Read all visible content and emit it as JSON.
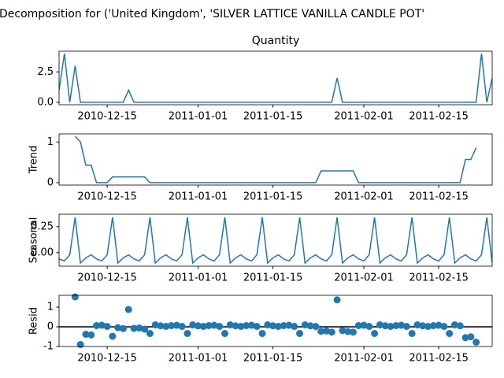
{
  "chart_data": [
    {
      "type": "line",
      "title": "Decomposition for ('United Kingdom', 'SILVER LATTICE VANILLA CANDLE POT'",
      "subtitle": "Quantity",
      "color": "#1f77b4",
      "x": [
        "2010-12-06",
        "2010-12-07",
        "2010-12-08",
        "2010-12-09",
        "2010-12-10",
        "2010-12-11",
        "2010-12-12",
        "2010-12-13",
        "2010-12-14",
        "2010-12-15",
        "2010-12-16",
        "2010-12-17",
        "2010-12-18",
        "2010-12-19",
        "2010-12-20",
        "2010-12-21",
        "2010-12-22",
        "2010-12-23",
        "2010-12-24",
        "2010-12-25",
        "2010-12-26",
        "2010-12-27",
        "2010-12-28",
        "2010-12-29",
        "2010-12-30",
        "2010-12-31",
        "2011-01-01",
        "2011-01-02",
        "2011-01-03",
        "2011-01-04",
        "2011-01-05",
        "2011-01-06",
        "2011-01-07",
        "2011-01-08",
        "2011-01-09",
        "2011-01-10",
        "2011-01-11",
        "2011-01-12",
        "2011-01-13",
        "2011-01-14",
        "2011-01-15",
        "2011-01-16",
        "2011-01-17",
        "2011-01-18",
        "2011-01-19",
        "2011-01-20",
        "2011-01-21",
        "2011-01-22",
        "2011-01-23",
        "2011-01-24",
        "2011-01-25",
        "2011-01-26",
        "2011-01-27",
        "2011-01-28",
        "2011-01-29",
        "2011-01-30",
        "2011-01-31",
        "2011-02-01",
        "2011-02-02",
        "2011-02-03",
        "2011-02-04",
        "2011-02-05",
        "2011-02-06",
        "2011-02-07",
        "2011-02-08",
        "2011-02-09",
        "2011-02-10",
        "2011-02-11",
        "2011-02-12",
        "2011-02-13",
        "2011-02-14",
        "2011-02-15",
        "2011-02-16",
        "2011-02-17",
        "2011-02-18",
        "2011-02-19",
        "2011-02-20",
        "2011-02-21",
        "2011-02-22",
        "2011-02-23",
        "2011-02-24",
        "2011-02-25"
      ],
      "values": [
        1,
        4,
        0,
        3,
        0,
        0,
        0,
        0,
        0,
        0,
        0,
        0,
        0,
        1,
        0,
        0,
        0,
        0,
        0,
        0,
        0,
        0,
        0,
        0,
        0,
        0,
        0,
        0,
        0,
        0,
        0,
        0,
        0,
        0,
        0,
        0,
        0,
        0,
        0,
        0,
        0,
        0,
        0,
        0,
        0,
        0,
        0,
        0,
        0,
        0,
        0,
        0,
        2,
        0,
        0,
        0,
        0,
        0,
        0,
        0,
        0,
        0,
        0,
        0,
        0,
        0,
        0,
        0,
        0,
        0,
        0,
        0,
        0,
        0,
        0,
        0,
        0,
        0,
        0,
        4,
        0,
        2
      ],
      "xlim": [
        "2010-12-06",
        "2011-02-25"
      ],
      "xticks": [
        "2010-12-15",
        "2011-01-01",
        "2011-01-15",
        "2011-02-01",
        "2011-02-15"
      ],
      "ylim": [
        -0.2,
        4.2
      ],
      "yticks": [
        {
          "value": 0,
          "label": "0.0"
        },
        2.5
      ]
    },
    {
      "type": "line",
      "ylabel": "Trend",
      "color": "#1f77b4",
      "x": [
        "2010-12-06",
        "2010-12-07",
        "2010-12-08",
        "2010-12-09",
        "2010-12-10",
        "2010-12-11",
        "2010-12-12",
        "2010-12-13",
        "2010-12-14",
        "2010-12-15",
        "2010-12-16",
        "2010-12-17",
        "2010-12-18",
        "2010-12-19",
        "2010-12-20",
        "2010-12-21",
        "2010-12-22",
        "2010-12-23",
        "2010-12-24",
        "2010-12-25",
        "2010-12-26",
        "2010-12-27",
        "2010-12-28",
        "2010-12-29",
        "2010-12-30",
        "2010-12-31",
        "2011-01-01",
        "2011-01-02",
        "2011-01-03",
        "2011-01-04",
        "2011-01-05",
        "2011-01-06",
        "2011-01-07",
        "2011-01-08",
        "2011-01-09",
        "2011-01-10",
        "2011-01-11",
        "2011-01-12",
        "2011-01-13",
        "2011-01-14",
        "2011-01-15",
        "2011-01-16",
        "2011-01-17",
        "2011-01-18",
        "2011-01-19",
        "2011-01-20",
        "2011-01-21",
        "2011-01-22",
        "2011-01-23",
        "2011-01-24",
        "2011-01-25",
        "2011-01-26",
        "2011-01-27",
        "2011-01-28",
        "2011-01-29",
        "2011-01-30",
        "2011-01-31",
        "2011-02-01",
        "2011-02-02",
        "2011-02-03",
        "2011-02-04",
        "2011-02-05",
        "2011-02-06",
        "2011-02-07",
        "2011-02-08",
        "2011-02-09",
        "2011-02-10",
        "2011-02-11",
        "2011-02-12",
        "2011-02-13",
        "2011-02-14",
        "2011-02-15",
        "2011-02-16",
        "2011-02-17",
        "2011-02-18",
        "2011-02-19",
        "2011-02-20",
        "2011-02-21",
        "2011-02-22",
        "2011-02-23",
        "2011-02-24",
        "2011-02-25"
      ],
      "values": [
        null,
        null,
        null,
        1.14,
        1,
        0.43,
        0.43,
        0,
        0,
        0,
        0.14,
        0.14,
        0.14,
        0.14,
        0.14,
        0.14,
        0.14,
        0,
        0,
        0,
        0,
        0,
        0,
        0,
        0,
        0,
        0,
        0,
        0,
        0,
        0,
        0,
        0,
        0,
        0,
        0,
        0,
        0,
        0,
        0,
        0,
        0,
        0,
        0,
        0,
        0,
        0,
        0,
        0,
        0.29,
        0.29,
        0.29,
        0.29,
        0.29,
        0.29,
        0.29,
        0,
        0,
        0,
        0,
        0,
        0,
        0,
        0,
        0,
        0,
        0,
        0,
        0,
        0,
        0,
        0,
        0,
        0,
        0,
        0,
        0.57,
        0.57,
        0.86,
        null,
        null,
        null
      ],
      "xlim": [
        "2010-12-06",
        "2011-02-25"
      ],
      "xticks": [
        "2010-12-15",
        "2011-01-01",
        "2011-01-15",
        "2011-02-01",
        "2011-02-15"
      ],
      "ylim": [
        -0.06,
        1.2
      ],
      "yticks": [
        0,
        1
      ]
    },
    {
      "type": "line",
      "ylabel": "Seasonal",
      "color": "#1f77b4",
      "x": [
        "2010-12-06",
        "2010-12-07",
        "2010-12-08",
        "2010-12-09",
        "2010-12-10",
        "2010-12-11",
        "2010-12-12",
        "2010-12-13",
        "2010-12-14",
        "2010-12-15",
        "2010-12-16",
        "2010-12-17",
        "2010-12-18",
        "2010-12-19",
        "2010-12-20",
        "2010-12-21",
        "2010-12-22",
        "2010-12-23",
        "2010-12-24",
        "2010-12-25",
        "2010-12-26",
        "2010-12-27",
        "2010-12-28",
        "2010-12-29",
        "2010-12-30",
        "2010-12-31",
        "2011-01-01",
        "2011-01-02",
        "2011-01-03",
        "2011-01-04",
        "2011-01-05",
        "2011-01-06",
        "2011-01-07",
        "2011-01-08",
        "2011-01-09",
        "2011-01-10",
        "2011-01-11",
        "2011-01-12",
        "2011-01-13",
        "2011-01-14",
        "2011-01-15",
        "2011-01-16",
        "2011-01-17",
        "2011-01-18",
        "2011-01-19",
        "2011-01-20",
        "2011-01-21",
        "2011-01-22",
        "2011-01-23",
        "2011-01-24",
        "2011-01-25",
        "2011-01-26",
        "2011-01-27",
        "2011-01-28",
        "2011-01-29",
        "2011-01-30",
        "2011-01-31",
        "2011-02-01",
        "2011-02-02",
        "2011-02-03",
        "2011-02-04",
        "2011-02-05",
        "2011-02-06",
        "2011-02-07",
        "2011-02-08",
        "2011-02-09",
        "2011-02-10",
        "2011-02-11",
        "2011-02-12",
        "2011-02-13",
        "2011-02-14",
        "2011-02-15",
        "2011-02-16",
        "2011-02-17",
        "2011-02-18",
        "2011-02-19",
        "2011-02-20",
        "2011-02-21",
        "2011-02-22",
        "2011-02-23",
        "2011-02-24",
        "2011-02-25"
      ],
      "values": [
        -0.06,
        -0.08,
        -0.02,
        0.34,
        -0.1,
        -0.05,
        -0.02,
        -0.06,
        -0.08,
        -0.02,
        0.34,
        -0.1,
        -0.05,
        -0.02,
        -0.06,
        -0.08,
        -0.02,
        0.34,
        -0.1,
        -0.05,
        -0.02,
        -0.06,
        -0.08,
        -0.02,
        0.34,
        -0.1,
        -0.05,
        -0.02,
        -0.06,
        -0.08,
        -0.02,
        0.34,
        -0.1,
        -0.05,
        -0.02,
        -0.06,
        -0.08,
        -0.02,
        0.34,
        -0.1,
        -0.05,
        -0.02,
        -0.06,
        -0.08,
        -0.02,
        0.34,
        -0.1,
        -0.05,
        -0.02,
        -0.06,
        -0.08,
        -0.02,
        0.34,
        -0.1,
        -0.05,
        -0.02,
        -0.06,
        -0.08,
        -0.02,
        0.34,
        -0.1,
        -0.05,
        -0.02,
        -0.06,
        -0.08,
        -0.02,
        0.34,
        -0.1,
        -0.05,
        -0.02,
        -0.06,
        -0.08,
        -0.02,
        0.34,
        -0.1,
        -0.05,
        -0.02,
        -0.06,
        -0.08,
        -0.02,
        0.34,
        -0.1
      ],
      "xlim": [
        "2010-12-06",
        "2011-02-25"
      ],
      "xticks": [
        "2010-12-15",
        "2011-01-01",
        "2011-01-15",
        "2011-02-01",
        "2011-02-15"
      ],
      "ylim": [
        -0.13,
        0.37
      ],
      "yticks": [
        {
          "value": 0,
          "label": "0.00"
        },
        0.25
      ]
    },
    {
      "type": "scatter",
      "ylabel": "Resid",
      "color": "#1f77b4",
      "hline": 0,
      "x": [
        "2010-12-06",
        "2010-12-07",
        "2010-12-08",
        "2010-12-09",
        "2010-12-10",
        "2010-12-11",
        "2010-12-12",
        "2010-12-13",
        "2010-12-14",
        "2010-12-15",
        "2010-12-16",
        "2010-12-17",
        "2010-12-18",
        "2010-12-19",
        "2010-12-20",
        "2010-12-21",
        "2010-12-22",
        "2010-12-23",
        "2010-12-24",
        "2010-12-25",
        "2010-12-26",
        "2010-12-27",
        "2010-12-28",
        "2010-12-29",
        "2010-12-30",
        "2010-12-31",
        "2011-01-01",
        "2011-01-02",
        "2011-01-03",
        "2011-01-04",
        "2011-01-05",
        "2011-01-06",
        "2011-01-07",
        "2011-01-08",
        "2011-01-09",
        "2011-01-10",
        "2011-01-11",
        "2011-01-12",
        "2011-01-13",
        "2011-01-14",
        "2011-01-15",
        "2011-01-16",
        "2011-01-17",
        "2011-01-18",
        "2011-01-19",
        "2011-01-20",
        "2011-01-21",
        "2011-01-22",
        "2011-01-23",
        "2011-01-24",
        "2011-01-25",
        "2011-01-26",
        "2011-01-27",
        "2011-01-28",
        "2011-01-29",
        "2011-01-30",
        "2011-01-31",
        "2011-02-01",
        "2011-02-02",
        "2011-02-03",
        "2011-02-04",
        "2011-02-05",
        "2011-02-06",
        "2011-02-07",
        "2011-02-08",
        "2011-02-09",
        "2011-02-10",
        "2011-02-11",
        "2011-02-12",
        "2011-02-13",
        "2011-02-14",
        "2011-02-15",
        "2011-02-16",
        "2011-02-17",
        "2011-02-18",
        "2011-02-19",
        "2011-02-20",
        "2011-02-21",
        "2011-02-22",
        "2011-02-23",
        "2011-02-24",
        "2011-02-25"
      ],
      "values": [
        null,
        null,
        null,
        1.52,
        -0.9,
        -0.38,
        -0.41,
        0.06,
        0.08,
        0.02,
        -0.48,
        -0.04,
        -0.09,
        0.88,
        -0.08,
        -0.06,
        -0.12,
        -0.34,
        0.1,
        0.05,
        0.02,
        0.06,
        0.08,
        0.02,
        -0.34,
        0.1,
        0.05,
        0.02,
        0.06,
        0.08,
        0.02,
        -0.34,
        0.1,
        0.05,
        0.02,
        0.06,
        0.08,
        0.02,
        -0.34,
        0.1,
        0.05,
        0.02,
        0.06,
        0.08,
        0.02,
        -0.34,
        0.1,
        0.05,
        0.02,
        -0.23,
        -0.21,
        -0.27,
        1.37,
        -0.19,
        -0.24,
        -0.27,
        0.06,
        0.08,
        0.02,
        -0.34,
        0.1,
        0.05,
        0.02,
        0.06,
        0.08,
        0.02,
        -0.34,
        0.1,
        0.05,
        0.02,
        0.06,
        0.08,
        0.02,
        -0.34,
        0.1,
        0.05,
        -0.55,
        -0.51,
        -0.78,
        null,
        null,
        null
      ],
      "xlim": [
        "2010-12-06",
        "2011-02-25"
      ],
      "xticks": [
        "2010-12-15",
        "2011-01-01",
        "2011-01-15",
        "2011-02-01",
        "2011-02-15"
      ],
      "ylim": [
        -1,
        1.6
      ],
      "yticks": [
        -1,
        0,
        1
      ]
    }
  ]
}
